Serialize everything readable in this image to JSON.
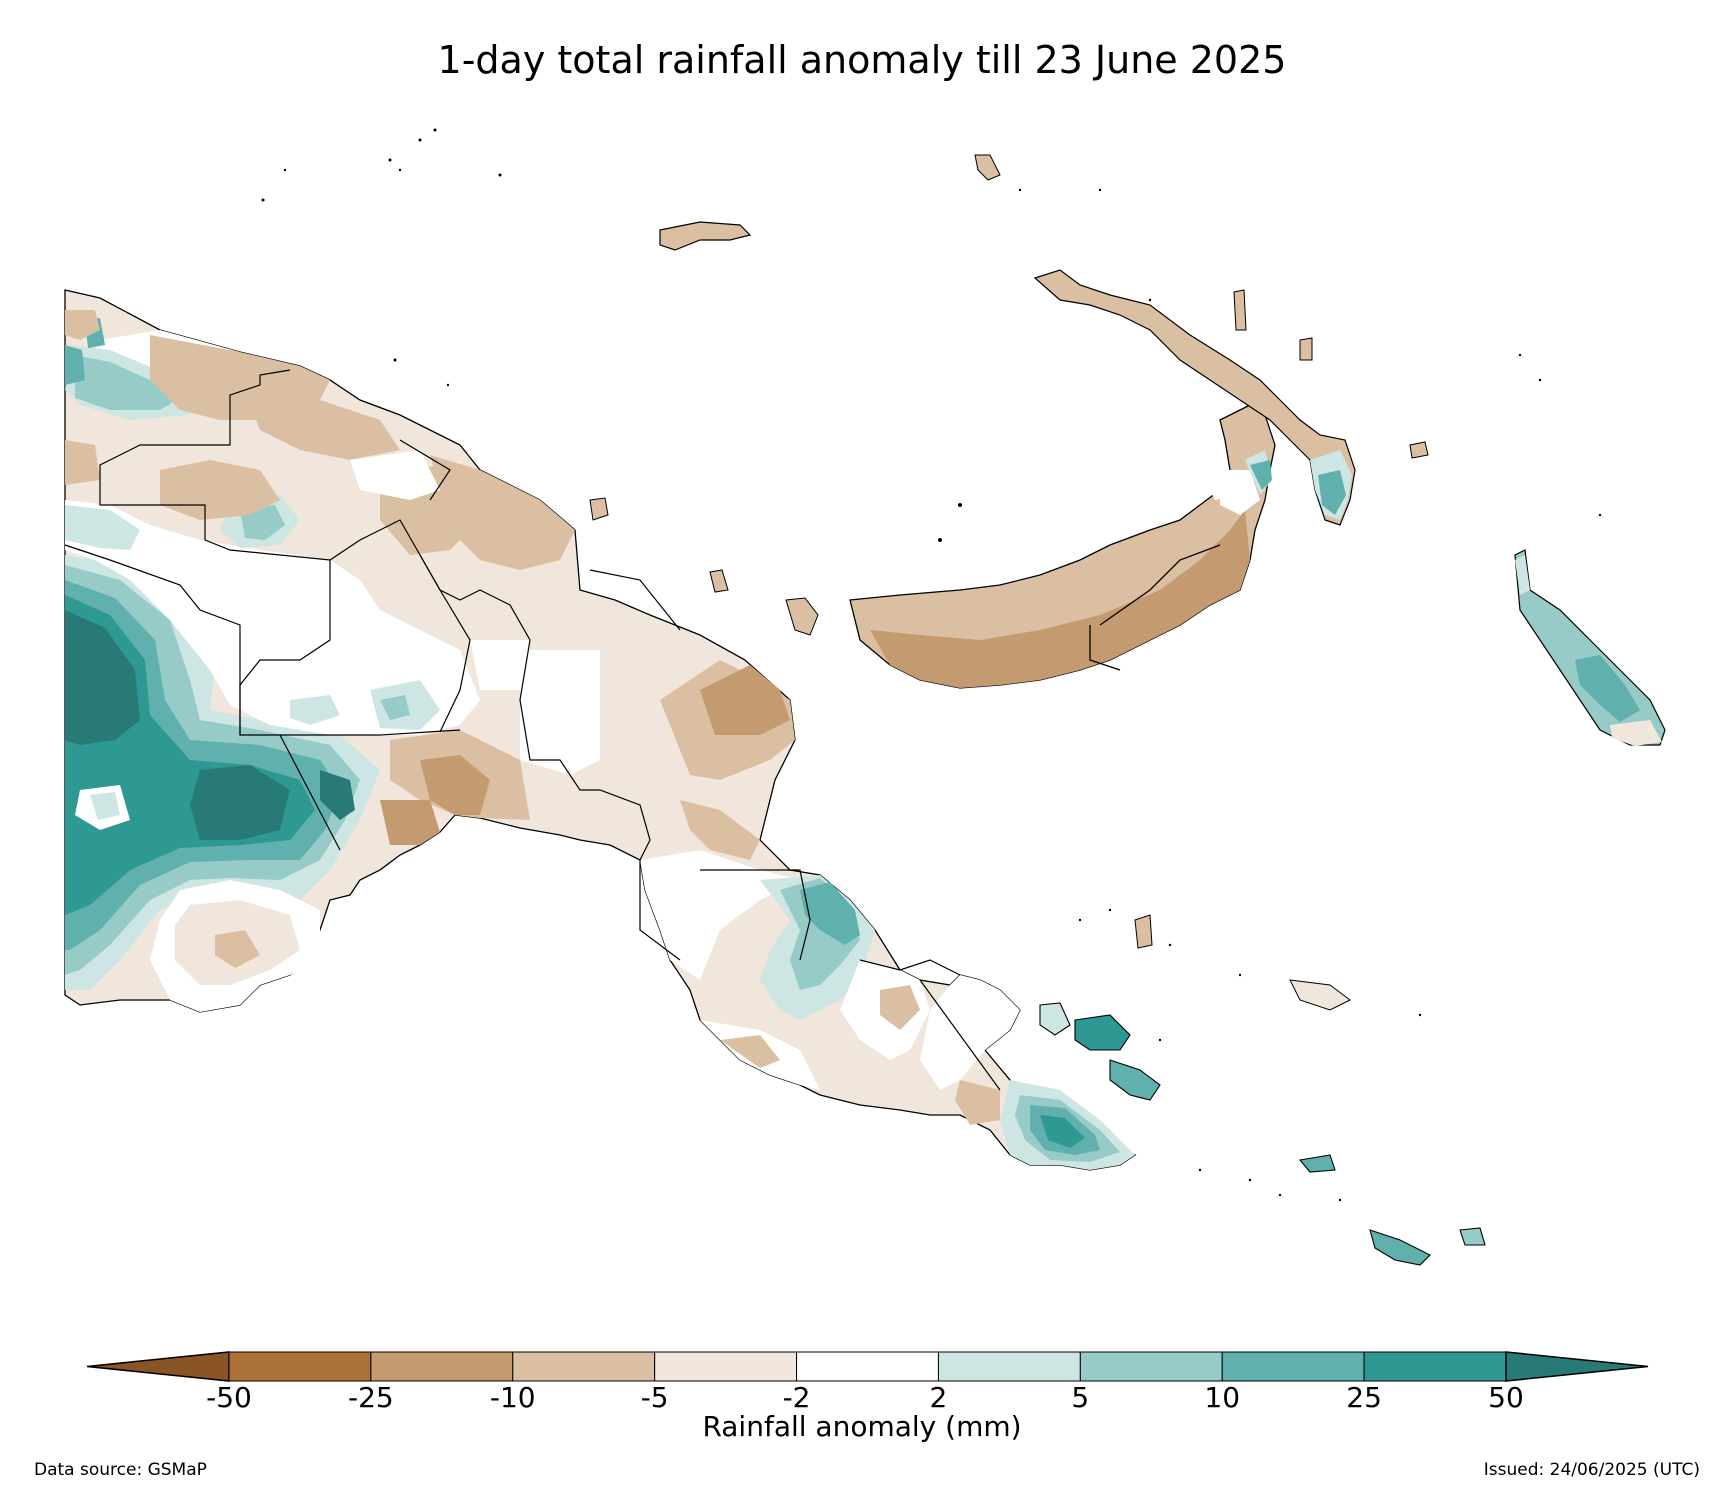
{
  "title": "1-day total rainfall anomaly till 23 June 2025",
  "colorbar": {
    "label": "Rainfall anomaly (mm)",
    "ticks": [
      "-50",
      "-25",
      "-10",
      "-5",
      "-2",
      "2",
      "5",
      "10",
      "25",
      "50"
    ],
    "colors": [
      "#8a5525",
      "#ac7139",
      "#c49a70",
      "#dbbfa2",
      "#f0e6dc",
      "#ffffff",
      "#cde6e4",
      "#96cbc8",
      "#60b0ad",
      "#2e9893",
      "#287a76"
    ]
  },
  "footer": {
    "source": "Data source: GSMaP",
    "issued": "Issued: 24/06/2025 (UTC)"
  }
}
